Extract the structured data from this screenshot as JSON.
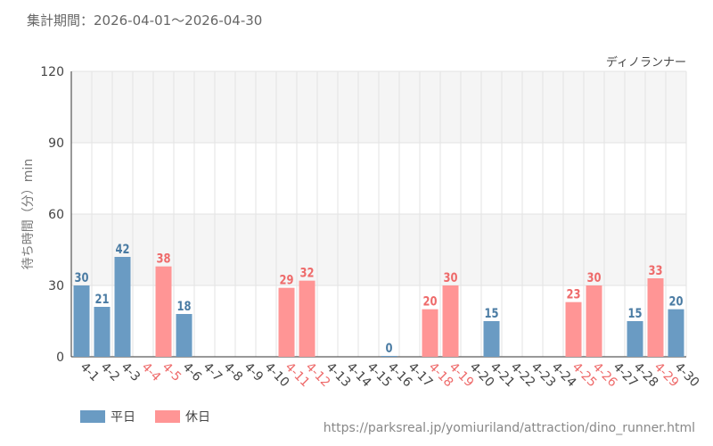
{
  "header": {
    "period_text": "集計期間：2026-04-01～2026-04-30"
  },
  "footer": {
    "source_text": "https://parksreal.jp/yomiuriland/attraction/dino_runner.html"
  },
  "legend": [
    {
      "label": "平日",
      "color": "#6a9bc3"
    },
    {
      "label": "休日",
      "color": "#ff9595"
    }
  ],
  "chart_data": {
    "type": "bar",
    "title": "ディノランナー",
    "ylabel": "待ち時間（分）min",
    "ylim": [
      0,
      120
    ],
    "yticks": [
      0,
      30,
      60,
      90,
      120
    ],
    "grid": true,
    "categories": [
      "4-1",
      "4-2",
      "4-3",
      "4-4",
      "4-5",
      "4-6",
      "4-7",
      "4-8",
      "4-9",
      "4-10",
      "4-11",
      "4-12",
      "4-13",
      "4-14",
      "4-15",
      "4-16",
      "4-17",
      "4-18",
      "4-19",
      "4-20",
      "4-21",
      "4-22",
      "4-23",
      "4-24",
      "4-25",
      "4-26",
      "4-27",
      "4-28",
      "4-29",
      "4-30"
    ],
    "day_type": [
      "平日",
      "平日",
      "平日",
      "休日",
      "休日",
      "平日",
      "平日",
      "平日",
      "平日",
      "平日",
      "休日",
      "休日",
      "平日",
      "平日",
      "平日",
      "平日",
      "平日",
      "休日",
      "休日",
      "平日",
      "平日",
      "平日",
      "平日",
      "平日",
      "休日",
      "休日",
      "平日",
      "平日",
      "休日",
      "平日"
    ],
    "values": [
      30,
      21,
      42,
      null,
      38,
      18,
      null,
      null,
      null,
      null,
      29,
      32,
      null,
      null,
      null,
      0,
      null,
      20,
      30,
      null,
      15,
      null,
      null,
      null,
      23,
      30,
      null,
      15,
      33,
      20
    ],
    "colors": {
      "weekday_bar": "#6a9bc3",
      "holiday_bar": "#ff9595",
      "weekday_label": "#4a7ba3",
      "holiday_label": "#ee6a6a",
      "band": "#f5f5f5",
      "grid": "#e3e3e3"
    }
  }
}
